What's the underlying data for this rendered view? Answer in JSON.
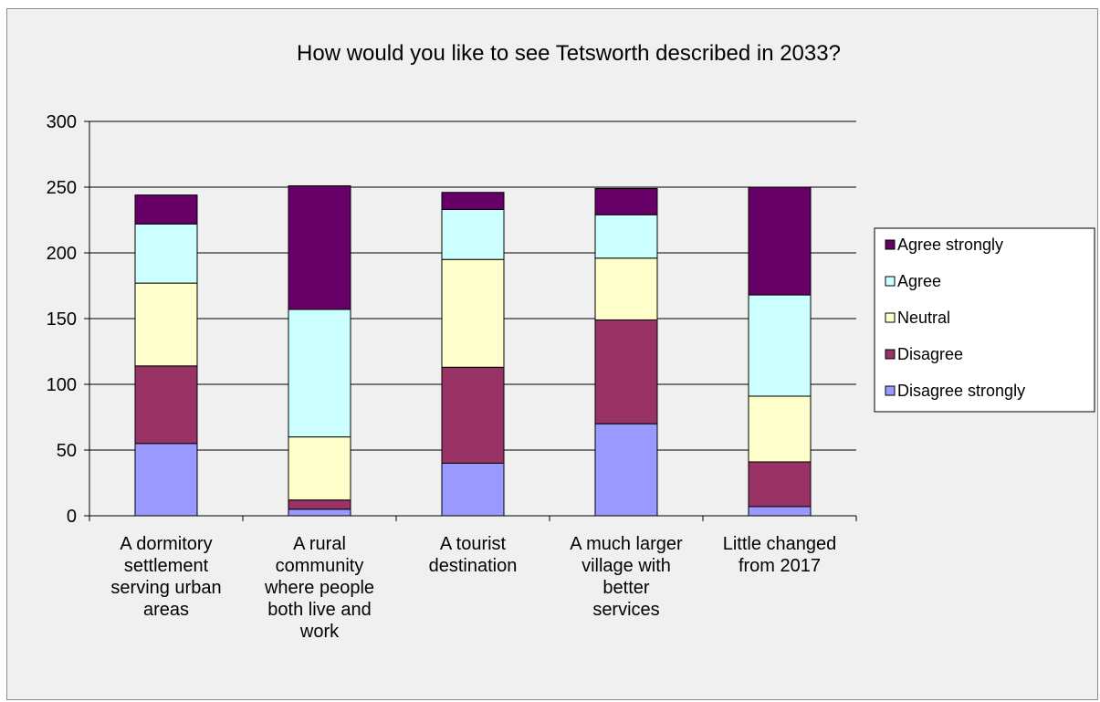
{
  "chart_data": {
    "type": "bar",
    "stacked": true,
    "title": "How would you like to see Tetsworth described in 2033?",
    "categories": [
      [
        "A dormitory",
        "settlement",
        "serving urban",
        "areas"
      ],
      [
        "A rural",
        "community",
        "where people",
        "both live and",
        "work"
      ],
      [
        "A tourist",
        "destination"
      ],
      [
        "A much larger",
        "village with",
        "better",
        "services"
      ],
      [
        "Little changed",
        "from 2017"
      ]
    ],
    "series": [
      {
        "name": "Disagree strongly",
        "color": "#9999ff",
        "values": [
          55,
          5,
          40,
          70,
          7
        ]
      },
      {
        "name": "Disagree",
        "color": "#993366",
        "values": [
          59,
          7,
          73,
          79,
          34
        ]
      },
      {
        "name": "Neutral",
        "color": "#ffffcc",
        "values": [
          63,
          48,
          82,
          47,
          50
        ]
      },
      {
        "name": "Agree",
        "color": "#ccffff",
        "values": [
          45,
          97,
          38,
          33,
          77
        ]
      },
      {
        "name": "Agree strongly",
        "color": "#660066",
        "values": [
          22,
          94,
          13,
          20,
          82
        ]
      }
    ],
    "ylim": [
      0,
      300
    ],
    "yticks": [
      "0",
      "50",
      "100",
      "150",
      "200",
      "250",
      "300"
    ],
    "grid": true,
    "legend": "right",
    "legend_order": [
      "Agree strongly",
      "Agree",
      "Neutral",
      "Disagree",
      "Disagree strongly"
    ]
  }
}
